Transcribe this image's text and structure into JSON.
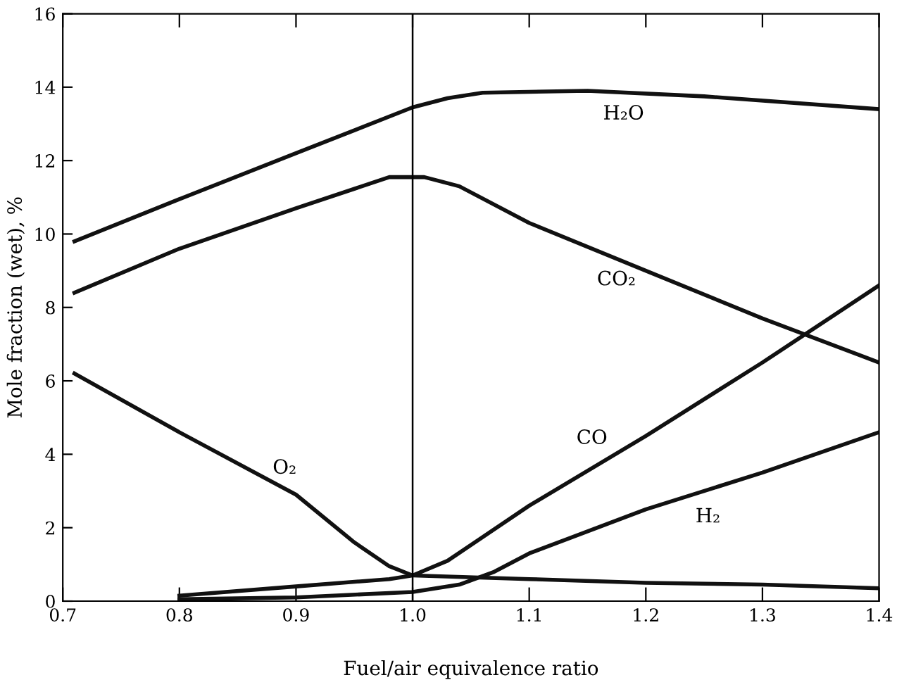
{
  "chart_data": {
    "type": "line",
    "xlabel": "Fuel/air equivalence ratio",
    "ylabel": "Mole fraction (wet), %",
    "xlim": [
      0.7,
      1.4
    ],
    "ylim": [
      0,
      16
    ],
    "xticks": [
      0.7,
      0.8,
      0.9,
      {
        "value": 1,
        "label": "1.0"
      },
      1.1,
      1.2,
      1.3,
      1.4
    ],
    "yticks": [
      0,
      2,
      4,
      6,
      8,
      10,
      12,
      14,
      16
    ],
    "grid": false,
    "legend": false,
    "marker": "none",
    "line_style": "solid",
    "ref_lines": [
      {
        "axis": "x",
        "value": 1.0,
        "color": "#000000"
      }
    ],
    "series": [
      {
        "name": "H₂O",
        "color": "#111111",
        "x": [
          0.71,
          0.8,
          0.9,
          1.0,
          1.03,
          1.06,
          1.15,
          1.25,
          1.4
        ],
        "values": [
          9.8,
          10.95,
          12.2,
          13.45,
          13.7,
          13.85,
          13.9,
          13.75,
          13.4
        ]
      },
      {
        "name": "CO₂",
        "color": "#111111",
        "x": [
          0.71,
          0.8,
          0.9,
          0.98,
          1.01,
          1.04,
          1.1,
          1.2,
          1.3,
          1.4
        ],
        "values": [
          8.4,
          9.6,
          10.7,
          11.55,
          11.55,
          11.3,
          10.3,
          9.0,
          7.7,
          6.5
        ]
      },
      {
        "name": "O₂",
        "color": "#111111",
        "x": [
          0.71,
          0.8,
          0.9,
          0.95,
          0.98,
          1.0,
          1.1,
          1.2,
          1.3,
          1.4
        ],
        "values": [
          6.2,
          4.6,
          2.9,
          1.6,
          0.95,
          0.7,
          0.6,
          0.5,
          0.45,
          0.35
        ]
      },
      {
        "name": "CO",
        "color": "#111111",
        "x": [
          0.8,
          0.9,
          0.98,
          1.0,
          1.03,
          1.1,
          1.2,
          1.3,
          1.4
        ],
        "values": [
          0.15,
          0.4,
          0.6,
          0.7,
          1.1,
          2.6,
          4.5,
          6.5,
          8.6
        ]
      },
      {
        "name": "H₂",
        "color": "#111111",
        "x": [
          0.8,
          0.9,
          1.0,
          1.04,
          1.07,
          1.1,
          1.2,
          1.3,
          1.4
        ],
        "values": [
          0.05,
          0.1,
          0.25,
          0.45,
          0.8,
          1.3,
          2.5,
          3.5,
          4.6
        ]
      }
    ]
  }
}
